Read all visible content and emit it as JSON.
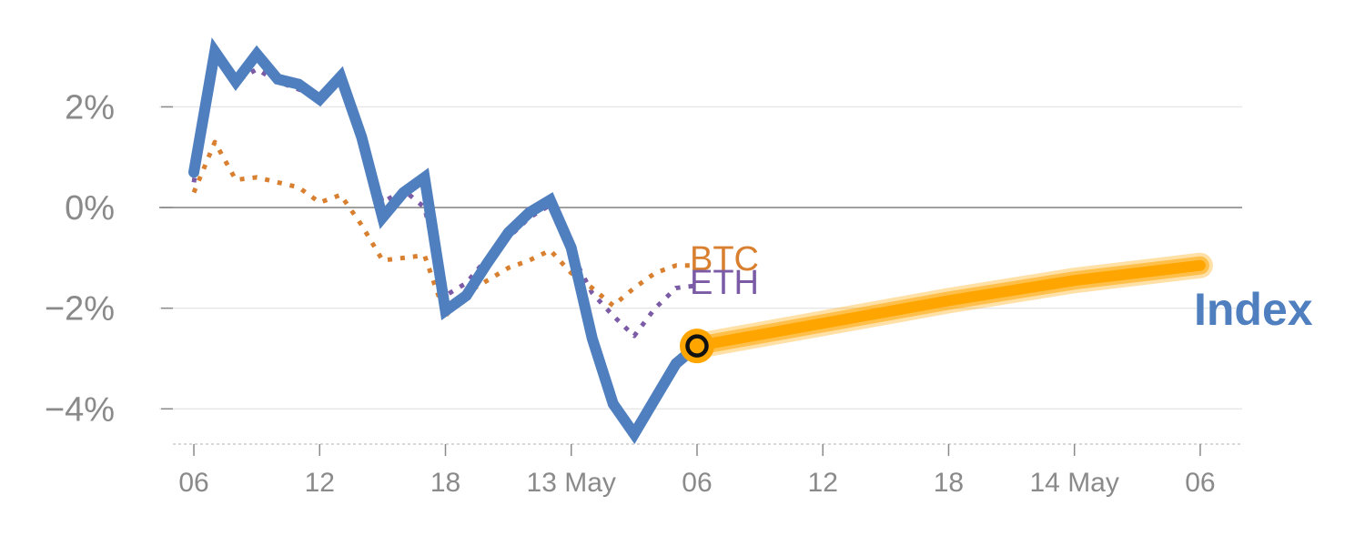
{
  "chart_data": {
    "type": "line",
    "x_unit": "hour offset from 12 May 06:00 (tick labels are clock hours / dates)",
    "x_ticks": [
      {
        "x": 0,
        "label": "06"
      },
      {
        "x": 6,
        "label": "12"
      },
      {
        "x": 12,
        "label": "18"
      },
      {
        "x": 18,
        "label": "13 May"
      },
      {
        "x": 24,
        "label": "06"
      },
      {
        "x": 30,
        "label": "12"
      },
      {
        "x": 36,
        "label": "18"
      },
      {
        "x": 42,
        "label": "14 May"
      },
      {
        "x": 48,
        "label": "06"
      }
    ],
    "y_ticks": [
      {
        "value": 2,
        "label": "2%"
      },
      {
        "value": 0,
        "label": "0%"
      },
      {
        "value": -2,
        "label": "−2%"
      },
      {
        "value": -4,
        "label": "−4%"
      }
    ],
    "xlim": [
      -1,
      50
    ],
    "ylim": [
      -4.7,
      3.4
    ],
    "grid": true,
    "series": [
      {
        "name": "Index",
        "style": "solid",
        "color": "#4f7fbf",
        "x": [
          0,
          1,
          2,
          3,
          4,
          5,
          6,
          7,
          8,
          9,
          10,
          11,
          12,
          13,
          14,
          15,
          16,
          17,
          18,
          19,
          20,
          21,
          22,
          23,
          24
        ],
        "y": [
          0.7,
          3.1,
          2.5,
          3.05,
          2.55,
          2.45,
          2.15,
          2.6,
          1.4,
          -0.2,
          0.3,
          0.6,
          -2.05,
          -1.75,
          -1.1,
          -0.5,
          -0.1,
          0.15,
          -0.8,
          -2.6,
          -3.9,
          -4.5,
          -3.8,
          -3.1,
          -2.75
        ]
      },
      {
        "name": "ETH",
        "style": "dotted",
        "color": "#7b5ba6",
        "x": [
          0,
          1,
          2,
          3,
          4,
          5,
          6,
          7,
          8,
          9,
          10,
          11,
          12,
          13,
          14,
          15,
          16,
          17,
          18,
          19,
          20,
          21,
          22,
          23,
          24
        ],
        "y": [
          0.5,
          3.0,
          2.5,
          2.75,
          2.5,
          2.35,
          2.15,
          2.55,
          1.4,
          0.1,
          0.35,
          0.0,
          -1.75,
          -1.5,
          -1.0,
          -0.6,
          -0.2,
          0.05,
          -0.9,
          -1.7,
          -2.15,
          -2.55,
          -2.0,
          -1.6,
          -1.55
        ]
      },
      {
        "name": "BTC",
        "style": "dotted",
        "color": "#d98030",
        "x": [
          0,
          1,
          2,
          3,
          4,
          5,
          6,
          7,
          8,
          9,
          10,
          11,
          12,
          13,
          14,
          15,
          16,
          17,
          18,
          19,
          20,
          21,
          22,
          23,
          24
        ],
        "y": [
          0.3,
          1.3,
          0.55,
          0.6,
          0.5,
          0.4,
          0.1,
          0.25,
          -0.35,
          -1.05,
          -1.0,
          -0.95,
          -2.15,
          -1.7,
          -1.45,
          -1.2,
          -1.05,
          -0.85,
          -1.3,
          -1.6,
          -1.95,
          -1.6,
          -1.3,
          -1.15,
          -1.15
        ]
      },
      {
        "name": "Index forecast",
        "style": "band",
        "color": "#ffa500",
        "x": [
          24,
          30,
          36,
          42,
          48
        ],
        "y": [
          -2.75,
          -2.3,
          -1.85,
          -1.45,
          -1.15
        ]
      }
    ],
    "labels": {
      "btc": "BTC",
      "eth": "ETH",
      "index": "Index"
    },
    "colors": {
      "grid": "#e6e6e6",
      "zero_line": "#8a8a8a",
      "tick_text": "#8a8a8a",
      "axis_dotted": "#cccccc",
      "marker_fill": "#ffa500",
      "marker_stroke": "#111111"
    }
  }
}
